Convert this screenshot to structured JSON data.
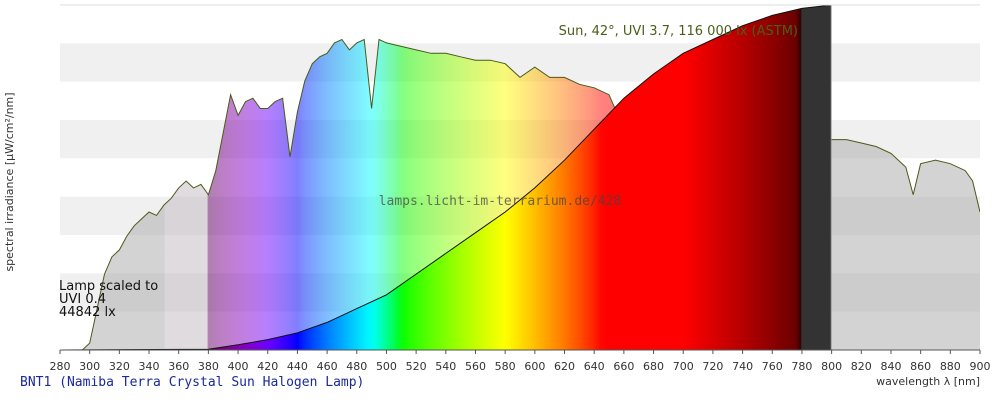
{
  "caption": "BNT1 (Namiba Terra Crystal Sun Halogen Lamp)",
  "chart_data": {
    "type": "area",
    "xlabel": "wavelength λ [nm]",
    "ylabel": "spectral irradiance [µW/cm²/nm]",
    "xlim": [
      280,
      900
    ],
    "ylim": [
      0,
      1
    ],
    "x_ticks": [
      280,
      300,
      320,
      340,
      360,
      380,
      400,
      420,
      440,
      460,
      480,
      500,
      520,
      540,
      560,
      580,
      600,
      620,
      640,
      660,
      680,
      700,
      720,
      740,
      760,
      780,
      800,
      820,
      840,
      860,
      880,
      900
    ],
    "y_bands": 9,
    "grid": "horizontal bands",
    "watermark": "lamps.licht-im-terrarium.de/428",
    "annotations": {
      "sun": "Sun, 42°, UVI 3.7, 116 000 lx (ASTM)",
      "lamp_line1": "Lamp scaled to",
      "lamp_line2": "UVI 0.4",
      "lamp_line3": "44842 lx"
    },
    "series": [
      {
        "name": "Sun, 42°, UVI 3.7, 116 000 lx (ASTM)",
        "x": [
          280,
          295,
          300,
          305,
          310,
          315,
          320,
          325,
          330,
          335,
          340,
          345,
          350,
          355,
          360,
          365,
          370,
          375,
          380,
          385,
          390,
          395,
          400,
          405,
          410,
          415,
          420,
          425,
          430,
          435,
          440,
          445,
          450,
          455,
          460,
          465,
          470,
          475,
          480,
          485,
          490,
          495,
          500,
          510,
          520,
          530,
          540,
          550,
          560,
          570,
          580,
          590,
          600,
          610,
          620,
          630,
          640,
          650,
          655,
          660,
          670,
          680,
          686,
          690,
          700,
          710,
          718,
          722,
          730,
          740,
          750,
          758,
          760,
          763,
          768,
          775,
          780,
          790,
          800,
          810,
          820,
          830,
          840,
          850,
          855,
          860,
          870,
          880,
          890,
          895,
          900
        ],
        "y": [
          0,
          0,
          0.02,
          0.12,
          0.22,
          0.27,
          0.29,
          0.33,
          0.36,
          0.38,
          0.4,
          0.39,
          0.42,
          0.44,
          0.47,
          0.49,
          0.47,
          0.48,
          0.45,
          0.52,
          0.63,
          0.74,
          0.68,
          0.72,
          0.73,
          0.7,
          0.7,
          0.72,
          0.73,
          0.56,
          0.69,
          0.78,
          0.83,
          0.85,
          0.86,
          0.89,
          0.9,
          0.87,
          0.89,
          0.9,
          0.7,
          0.9,
          0.89,
          0.88,
          0.87,
          0.86,
          0.86,
          0.85,
          0.84,
          0.84,
          0.83,
          0.79,
          0.82,
          0.79,
          0.79,
          0.77,
          0.76,
          0.74,
          0.69,
          0.7,
          0.71,
          0.72,
          0.62,
          0.72,
          0.71,
          0.64,
          0.52,
          0.67,
          0.67,
          0.66,
          0.65,
          0.57,
          0.2,
          0.08,
          0.35,
          0.55,
          0.65,
          0.64,
          0.61,
          0.61,
          0.6,
          0.59,
          0.57,
          0.53,
          0.45,
          0.54,
          0.55,
          0.54,
          0.52,
          0.49,
          0.4
        ]
      },
      {
        "name": "BNT1 (Namiba Terra Crystal Sun Halogen Lamp)",
        "x": [
          280,
          380,
          400,
          420,
          440,
          460,
          480,
          500,
          520,
          540,
          560,
          580,
          600,
          620,
          640,
          660,
          680,
          700,
          720,
          740,
          760,
          780,
          800
        ],
        "y": [
          0,
          0.002,
          0.015,
          0.03,
          0.05,
          0.08,
          0.12,
          0.16,
          0.22,
          0.28,
          0.34,
          0.4,
          0.47,
          0.55,
          0.64,
          0.73,
          0.8,
          0.86,
          0.9,
          0.94,
          0.97,
          0.99,
          1.0
        ]
      }
    ]
  }
}
